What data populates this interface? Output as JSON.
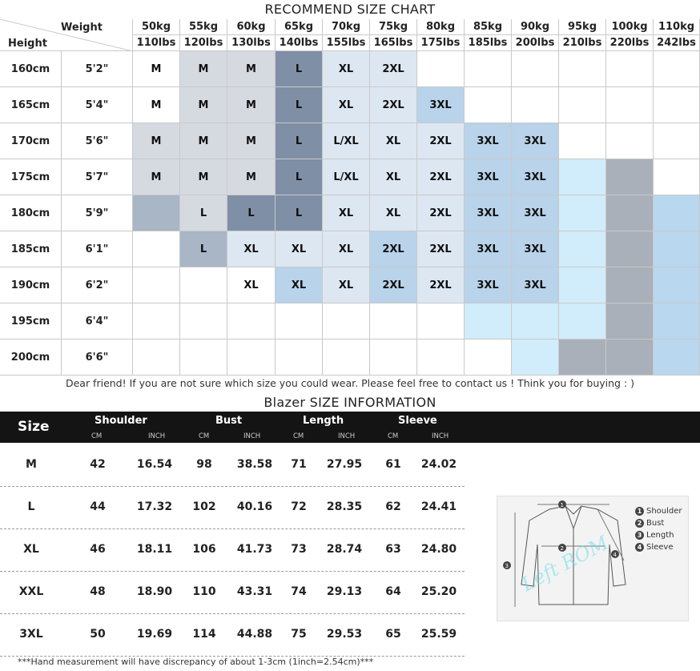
{
  "chart_title": "RECOMMEND SIZE CHART",
  "header": {
    "weight_label": "Weight",
    "height_label": "Height",
    "kg": [
      "50kg",
      "55kg",
      "60kg",
      "65kg",
      "70kg",
      "75kg",
      "80kg",
      "85kg",
      "90kg",
      "95kg",
      "100kg",
      "110kg"
    ],
    "lbs": [
      "110lbs",
      "120lbs",
      "130lbs",
      "140lbs",
      "155lbs",
      "165lbs",
      "175lbs",
      "185lbs",
      "200lbs",
      "210lbs",
      "220lbs",
      "242lbs"
    ]
  },
  "rows": [
    {
      "cm": "160cm",
      "ft": "5'2\"",
      "sizes": [
        "M",
        "M",
        "M",
        "L",
        "XL",
        "2XL",
        "",
        "",
        "",
        "",
        "",
        ""
      ]
    },
    {
      "cm": "165cm",
      "ft": "5'4\"",
      "sizes": [
        "M",
        "M",
        "M",
        "L",
        "XL",
        "2XL",
        "3XL",
        "",
        "",
        "",
        "",
        ""
      ]
    },
    {
      "cm": "170cm",
      "ft": "5'6\"",
      "sizes": [
        "M",
        "M",
        "M",
        "L",
        "L/XL",
        "XL",
        "2XL",
        "3XL",
        "3XL",
        "",
        "",
        ""
      ]
    },
    {
      "cm": "175cm",
      "ft": "5'7\"",
      "sizes": [
        "M",
        "M",
        "M",
        "L",
        "L/XL",
        "XL",
        "2XL",
        "3XL",
        "3XL",
        "",
        "",
        ""
      ]
    },
    {
      "cm": "180cm",
      "ft": "5'9\"",
      "sizes": [
        "",
        "L",
        "L",
        "L",
        "XL",
        "XL",
        "2XL",
        "3XL",
        "3XL",
        "",
        "",
        ""
      ]
    },
    {
      "cm": "185cm",
      "ft": "6'1\"",
      "sizes": [
        "",
        "L",
        "XL",
        "XL",
        "XL",
        "2XL",
        "2XL",
        "3XL",
        "3XL",
        "",
        "",
        ""
      ]
    },
    {
      "cm": "190cm",
      "ft": "6'2\"",
      "sizes": [
        "",
        "",
        "XL",
        "XL",
        "XL",
        "2XL",
        "2XL",
        "3XL",
        "3XL",
        "",
        "",
        ""
      ]
    },
    {
      "cm": "195cm",
      "ft": "6'4\"",
      "sizes": [
        "",
        "",
        "",
        "",
        "",
        "",
        "",
        "",
        "",
        "",
        "",
        ""
      ]
    },
    {
      "cm": "200cm",
      "ft": "6'6\"",
      "sizes": [
        "",
        "",
        "",
        "",
        "",
        "",
        "",
        "",
        "",
        "",
        "",
        ""
      ]
    }
  ],
  "colors": {
    "w": "#ffffff",
    "g": "#d5d9e0",
    "d": "#7f8fa6",
    "p": "#dde7f2",
    "b": "#b8d3ea",
    "c": "#d1ecfa",
    "s": "#a8b6c6",
    "k": "#a9b0b9",
    "u": "#b9d7ee",
    "m": "#c3d3e6"
  },
  "color_map": [
    [
      "w",
      "g",
      "g",
      "d",
      "p",
      "p",
      "w",
      "w",
      "w",
      "w",
      "w",
      "w"
    ],
    [
      "w",
      "g",
      "g",
      "d",
      "p",
      "p",
      "b",
      "w",
      "w",
      "w",
      "w",
      "w"
    ],
    [
      "g",
      "g",
      "g",
      "d",
      "p",
      "p",
      "p",
      "b",
      "b",
      "w",
      "w",
      "w"
    ],
    [
      "g",
      "g",
      "g",
      "d",
      "p",
      "p",
      "p",
      "b",
      "b",
      "c",
      "k",
      "w"
    ],
    [
      "s",
      "g",
      "d",
      "d",
      "p",
      "p",
      "p",
      "b",
      "b",
      "c",
      "k",
      "u"
    ],
    [
      "w",
      "s",
      "p",
      "p",
      "p",
      "b",
      "p",
      "b",
      "b",
      "c",
      "k",
      "u"
    ],
    [
      "w",
      "w",
      "w",
      "b",
      "p",
      "b",
      "p",
      "b",
      "b",
      "c",
      "k",
      "u"
    ],
    [
      "w",
      "w",
      "w",
      "w",
      "w",
      "w",
      "w",
      "c",
      "c",
      "c",
      "k",
      "u"
    ],
    [
      "w",
      "w",
      "w",
      "w",
      "w",
      "w",
      "w",
      "w",
      "c",
      "k",
      "k",
      "u"
    ]
  ],
  "note_friend": "Dear friend! If you are not sure which size you could wear. Please feel free to contact us ! Think you for buying  : )",
  "blazer_title": "Blazer SIZE INFORMATION",
  "table": {
    "size_label": "Size",
    "columns": [
      "Shoulder",
      "Bust",
      "Length",
      "Sleeve"
    ],
    "unit_cm": "CM",
    "unit_inch": "INCH",
    "rows": [
      {
        "size": "M",
        "values": [
          "42",
          "16.54",
          "98",
          "38.58",
          "71",
          "27.95",
          "61",
          "24.02"
        ]
      },
      {
        "size": "L",
        "values": [
          "44",
          "17.32",
          "102",
          "40.16",
          "72",
          "28.35",
          "62",
          "24.41"
        ]
      },
      {
        "size": "XL",
        "values": [
          "46",
          "18.11",
          "106",
          "41.73",
          "73",
          "28.74",
          "63",
          "24.80"
        ]
      },
      {
        "size": "XXL",
        "values": [
          "48",
          "18.90",
          "110",
          "43.31",
          "74",
          "29.13",
          "64",
          "25.20"
        ]
      },
      {
        "size": "3XL",
        "values": [
          "50",
          "19.69",
          "114",
          "44.88",
          "75",
          "29.53",
          "65",
          "25.59"
        ]
      }
    ]
  },
  "diagram": {
    "legend": [
      {
        "num": "1",
        "label": "Shoulder"
      },
      {
        "num": "2",
        "label": "Bust"
      },
      {
        "num": "3",
        "label": "Length"
      },
      {
        "num": "4",
        "label": "Sleeve"
      }
    ],
    "watermark": "Left ROM"
  },
  "footnote": "***Hand measurement will have discrepancy of about 1-3cm (1inch=2.54cm)***"
}
